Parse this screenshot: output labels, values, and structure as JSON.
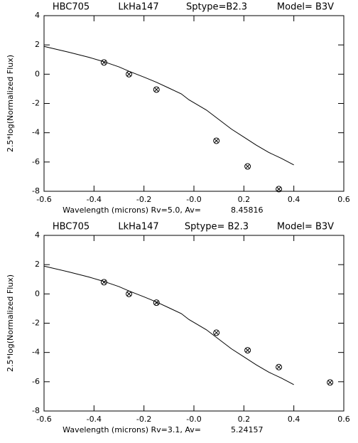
{
  "chart_data": [
    {
      "type": "line",
      "header": [
        "HBC705",
        "LkHa147",
        "Sptype=B2.3",
        "Model= B3V"
      ],
      "ylabel": "2.5*log(Normalized Flux)",
      "xlabel": "Wavelength (microns) Rv=5.0, Av=",
      "av": "8.45816",
      "xlim": [
        -0.6,
        0.6
      ],
      "ylim": [
        -8,
        4
      ],
      "xticks": [
        -0.6,
        -0.4,
        -0.2,
        {
          "value": 0,
          "label": "-0.0"
        },
        0.2,
        0.4,
        0.6
      ],
      "yticks": [
        -8,
        -6,
        -4,
        -2,
        0,
        2,
        4
      ],
      "series": [
        {
          "style": "line",
          "color": "#000000",
          "x": [
            -0.6,
            -0.5,
            -0.42,
            -0.36,
            -0.3,
            -0.26,
            -0.2,
            -0.15,
            -0.1,
            -0.05,
            -0.02,
            0,
            0.05,
            0.1,
            0.15,
            0.2,
            0.25,
            0.3,
            0.35,
            0.4
          ],
          "values": [
            1.9,
            1.5,
            1.15,
            0.85,
            0.5,
            0.2,
            -0.2,
            -0.55,
            -0.95,
            -1.35,
            -1.75,
            -1.95,
            -2.45,
            -3.1,
            -3.75,
            -4.3,
            -4.85,
            -5.35,
            -5.75,
            -6.2
          ]
        },
        {
          "style": "marker",
          "color": "#000000",
          "x": [
            -0.36,
            -0.26,
            -0.15,
            0.09,
            0.215,
            0.34
          ],
          "values": [
            0.8,
            0.0,
            -1.05,
            -4.55,
            -6.3,
            -7.85
          ]
        }
      ]
    },
    {
      "type": "line",
      "header": [
        "HBC705",
        "LkHa147",
        "Sptype= B2.3",
        "Model= B3V"
      ],
      "ylabel": "2.5*log(Normalized Flux)",
      "xlabel": "Wavelength (microns) Rv=3.1, Av=",
      "av": "5.24157",
      "xlim": [
        -0.6,
        0.6
      ],
      "ylim": [
        -8,
        4
      ],
      "xticks": [
        -0.6,
        -0.4,
        -0.2,
        {
          "value": 0,
          "label": "-0.0"
        },
        0.2,
        0.4,
        0.6
      ],
      "yticks": [
        -8,
        -6,
        -4,
        -2,
        0,
        2,
        4
      ],
      "series": [
        {
          "style": "line",
          "color": "#000000",
          "x": [
            -0.6,
            -0.5,
            -0.42,
            -0.36,
            -0.3,
            -0.26,
            -0.2,
            -0.15,
            -0.1,
            -0.05,
            -0.02,
            0,
            0.05,
            0.1,
            0.15,
            0.2,
            0.25,
            0.3,
            0.35,
            0.4
          ],
          "values": [
            1.9,
            1.5,
            1.15,
            0.85,
            0.5,
            0.2,
            -0.2,
            -0.55,
            -0.95,
            -1.35,
            -1.75,
            -1.95,
            -2.45,
            -3.1,
            -3.75,
            -4.3,
            -4.85,
            -5.35,
            -5.75,
            -6.2
          ]
        },
        {
          "style": "marker",
          "color": "#000000",
          "x": [
            -0.36,
            -0.26,
            -0.15,
            0.09,
            0.215,
            0.34,
            0.545
          ],
          "values": [
            0.8,
            0.0,
            -0.6,
            -2.65,
            -3.85,
            -5.0,
            -6.05
          ]
        }
      ]
    }
  ]
}
